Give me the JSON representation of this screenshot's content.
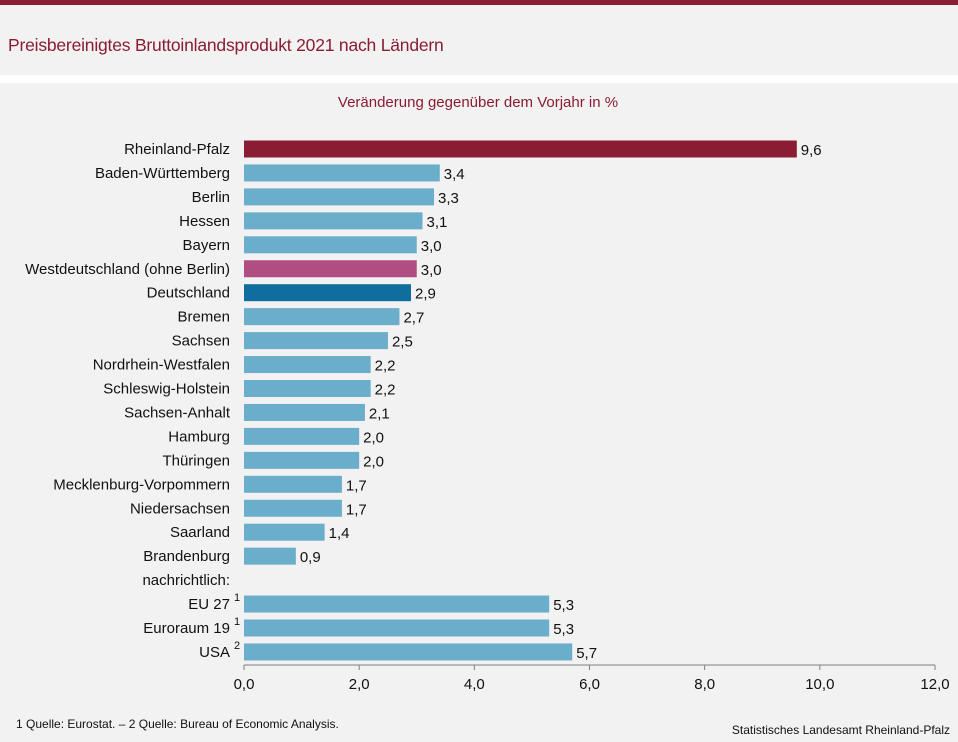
{
  "header": {
    "title": "Preisbereinigtes Bruttoinlandsprodukt 2021 nach Ländern"
  },
  "chart_data": {
    "type": "bar",
    "orientation": "horizontal",
    "title": "Preisbereinigtes Bruttoinlandsprodukt 2021 nach Ländern",
    "subtitle": "Veränderung gegenüber dem Vorjahr in %",
    "categories": [
      "Rheinland-Pfalz",
      "Baden-Württemberg",
      "Berlin",
      "Hessen",
      "Bayern",
      "Westdeutschland (ohne Berlin)",
      "Deutschland",
      "Bremen",
      "Sachsen",
      "Nordrhein-Westfalen",
      "Schleswig-Holstein",
      "Sachsen-Anhalt",
      "Hamburg",
      "Thüringen",
      "Mecklenburg-Vorpommern",
      "Niedersachsen",
      "Saarland",
      "Brandenburg",
      "nachrichtlich:",
      "EU 27",
      "Euroraum 19",
      "USA"
    ],
    "values": [
      9.6,
      3.4,
      3.3,
      3.1,
      3.0,
      3.0,
      2.9,
      2.7,
      2.5,
      2.2,
      2.2,
      2.1,
      2.0,
      2.0,
      1.7,
      1.7,
      1.4,
      0.9,
      null,
      5.3,
      5.3,
      5.7
    ],
    "value_labels": [
      "9,6",
      "3,4",
      "3,3",
      "3,1",
      "3,0",
      "3,0",
      "2,9",
      "2,7",
      "2,5",
      "2,2",
      "2,2",
      "2,1",
      "2,0",
      "2,0",
      "1,7",
      "1,7",
      "1,4",
      "0,9",
      "",
      "5,3",
      "5,3",
      "5,7"
    ],
    "superscripts": [
      "",
      "",
      "",
      "",
      "",
      "",
      "",
      "",
      "",
      "",
      "",
      "",
      "",
      "",
      "",
      "",
      "",
      "",
      "",
      "1",
      "1",
      "2"
    ],
    "bar_colors": [
      "#8a1c33",
      "#6aaecb",
      "#6aaecb",
      "#6aaecb",
      "#6aaecb",
      "#b04d82",
      "#0f6e9e",
      "#6aaecb",
      "#6aaecb",
      "#6aaecb",
      "#6aaecb",
      "#6aaecb",
      "#6aaecb",
      "#6aaecb",
      "#6aaecb",
      "#6aaecb",
      "#6aaecb",
      "#6aaecb",
      "#6aaecb",
      "#6aaecb",
      "#6aaecb",
      "#6aaecb"
    ],
    "xlim": [
      0,
      12
    ],
    "xticks": [
      0,
      2,
      4,
      6,
      8,
      10,
      12
    ],
    "xtick_labels": [
      "0,0",
      "2,0",
      "4,0",
      "6,0",
      "8,0",
      "10,0",
      "12,0"
    ],
    "grid": false
  },
  "footer": {
    "note": "1 Quelle: Eurostat. – 2 Quelle: Bureau of Economic Analysis.",
    "source": "Statistisches Landesamt Rheinland-Pfalz"
  }
}
